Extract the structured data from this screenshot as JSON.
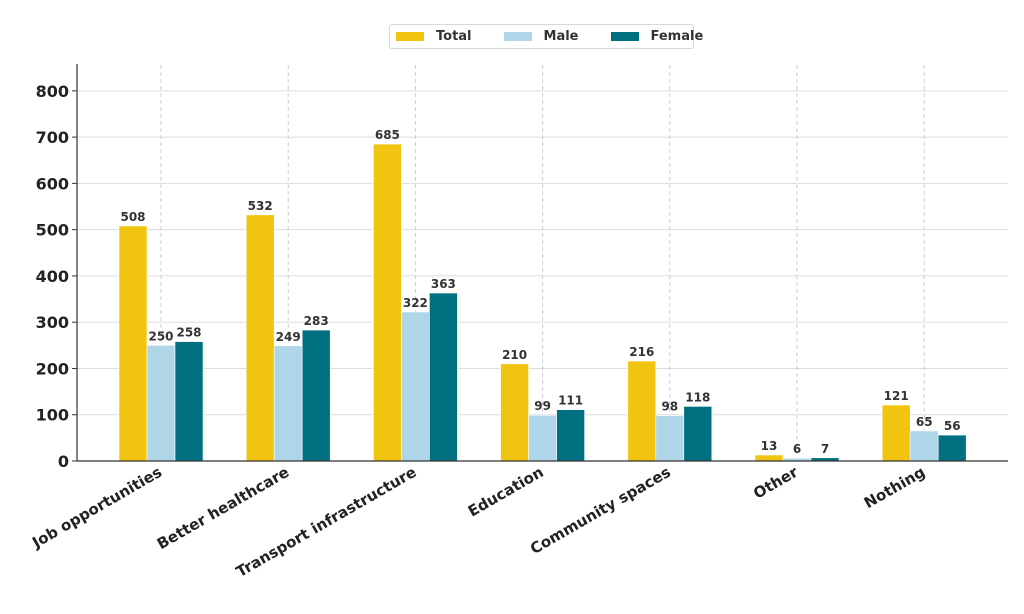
{
  "chart_data": {
    "type": "bar",
    "title": "",
    "xlabel": "",
    "ylabel": "",
    "ylim": [
      0,
      858
    ],
    "yticks": [
      0,
      100,
      200,
      300,
      400,
      500,
      600,
      700,
      800
    ],
    "grid": true,
    "legend_position": "top-center",
    "categories": [
      "Job opportunities",
      "Better healthcare",
      "Transport infrastructure",
      "Education",
      "Community spaces",
      "Other",
      "Nothing"
    ],
    "series": [
      {
        "name": "Total",
        "color": "#F1C40F",
        "values": [
          508,
          532,
          685,
          210,
          216,
          13,
          121
        ]
      },
      {
        "name": "Male",
        "color": "#AED6E8",
        "values": [
          250,
          249,
          322,
          99,
          98,
          6,
          65
        ]
      },
      {
        "name": "Female",
        "color": "#006F80",
        "values": [
          258,
          283,
          363,
          111,
          118,
          7,
          56
        ]
      }
    ]
  }
}
